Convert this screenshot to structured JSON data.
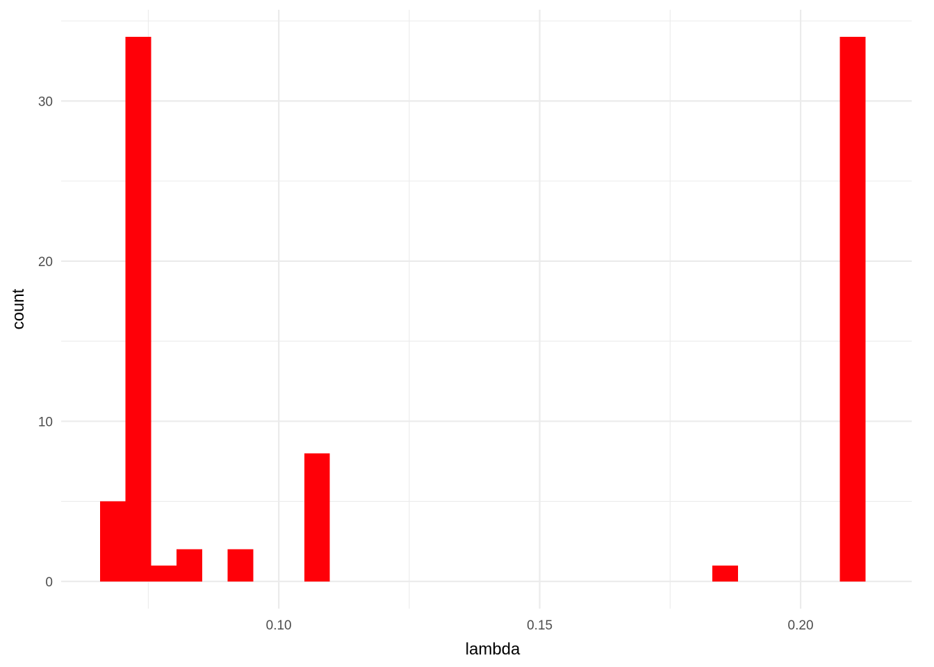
{
  "chart_data": {
    "type": "bar",
    "subtype": "histogram",
    "xlabel": "lambda",
    "ylabel": "count",
    "bin_width": 0.004889,
    "bins": [
      {
        "start": 0.06576,
        "count": 5
      },
      {
        "start": 0.07065,
        "count": 34
      },
      {
        "start": 0.07554,
        "count": 1
      },
      {
        "start": 0.08043,
        "count": 2
      },
      {
        "start": 0.08532,
        "count": 0
      },
      {
        "start": 0.09021,
        "count": 2
      },
      {
        "start": 0.0951,
        "count": 0
      },
      {
        "start": 0.09999,
        "count": 0
      },
      {
        "start": 0.10488,
        "count": 8
      },
      {
        "start": 0.1831,
        "count": 1
      },
      {
        "start": 0.20754,
        "count": 34
      }
    ],
    "xlim": [
      0.0583,
      0.2213
    ],
    "ylim": [
      -1.7,
      35.7
    ],
    "x_major_ticks": [
      0.1,
      0.15,
      0.2
    ],
    "x_major_tick_labels": [
      "0.10",
      "0.15",
      "0.20"
    ],
    "x_minor_ticks": [
      0.075,
      0.125,
      0.175
    ],
    "y_major_ticks": [
      0,
      10,
      20,
      30
    ],
    "y_major_tick_labels": [
      "0",
      "10",
      "20",
      "30"
    ],
    "y_minor_ticks": [
      5,
      15,
      25,
      35
    ],
    "grid": true,
    "legend": "none",
    "bar_color": "#FF0008",
    "grid_color": "#EBEBEB"
  }
}
